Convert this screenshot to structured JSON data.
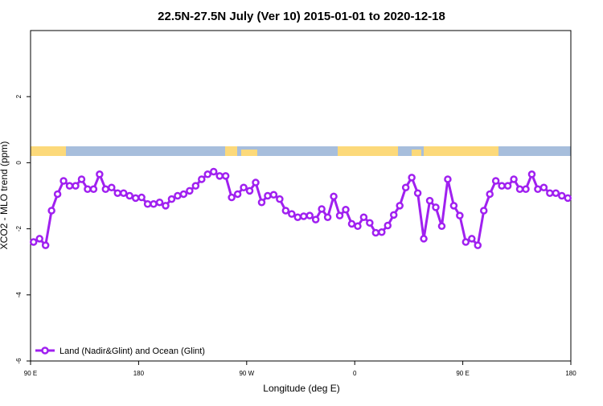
{
  "chart_data": {
    "type": "line",
    "title": "22.5N-27.5N July (Ver 10)   2015-01-01 to 2020-12-18",
    "x_label": "Longitude (deg E)",
    "y_label": "XCO2 - MLO trend (ppm)",
    "xlim": [
      90,
      540
    ],
    "ylim": [
      -6,
      4
    ],
    "xticks": [
      {
        "value": 90,
        "label": "90 E"
      },
      180,
      {
        "value": 270,
        "label": "90 W"
      },
      {
        "value": 360,
        "label": "0"
      },
      {
        "value": 450,
        "label": "90 E"
      },
      {
        "value": 540,
        "label": "180"
      }
    ],
    "yticks": [
      -6,
      -4,
      -2,
      0,
      2
    ],
    "legend": "bottom-left",
    "x": [
      92.5,
      97.5,
      102.5,
      107.5,
      112.5,
      117.5,
      122.5,
      127.5,
      132.5,
      137.5,
      142.5,
      147.5,
      152.5,
      157.5,
      162.5,
      167.5,
      172.5,
      177.5,
      182.5,
      187.5,
      192.5,
      197.5,
      202.5,
      207.5,
      212.5,
      217.5,
      222.5,
      227.5,
      232.5,
      237.5,
      242.5,
      247.5,
      252.5,
      257.5,
      262.5,
      267.5,
      272.5,
      277.5,
      282.5,
      287.5,
      292.5,
      297.5,
      302.5,
      307.5,
      312.5,
      317.5,
      322.5,
      327.5,
      332.5,
      337.5,
      342.5,
      347.5,
      352.5,
      357.5,
      362.5,
      367.5,
      372.5,
      377.5,
      382.5,
      387.5,
      392.5,
      397.5,
      402.5,
      407.5,
      412.5,
      417.5,
      422.5,
      427.5,
      432.5,
      437.5,
      442.5,
      447.5,
      452.5,
      457.5,
      462.5,
      467.5,
      472.5,
      477.5,
      482.5,
      487.5,
      492.5,
      497.5,
      502.5,
      507.5,
      512.5,
      517.5,
      522.5,
      527.5,
      532.5,
      537.5
    ],
    "series": [
      {
        "name": "Land (Nadir&Glint) and Ocean (Glint)",
        "color": "#a020f0",
        "values": [
          -2.4,
          -2.3,
          -2.5,
          -1.45,
          -0.95,
          -0.55,
          -0.7,
          -0.7,
          -0.5,
          -0.8,
          -0.8,
          -0.35,
          -0.8,
          -0.75,
          -0.92,
          -0.92,
          -1.0,
          -1.07,
          -1.05,
          -1.25,
          -1.25,
          -1.2,
          -1.3,
          -1.1,
          -1.0,
          -0.95,
          -0.85,
          -0.7,
          -0.5,
          -0.35,
          -0.27,
          -0.4,
          -0.4,
          -1.05,
          -0.95,
          -0.75,
          -0.85,
          -0.6,
          -1.2,
          -1.0,
          -0.97,
          -1.1,
          -1.45,
          -1.55,
          -1.65,
          -1.62,
          -1.6,
          -1.72,
          -1.4,
          -1.65,
          -1.02,
          -1.6,
          -1.42,
          -1.85,
          -1.92,
          -1.65,
          -1.82,
          -2.12,
          -2.1,
          -1.9,
          -1.58,
          -1.3,
          -0.75,
          -0.45,
          -0.92,
          -2.3,
          -1.15,
          -1.35,
          -1.92,
          -0.5,
          -1.3,
          -1.6,
          -2.4,
          -2.3,
          -2.5,
          -1.45,
          -0.95,
          -0.55,
          -0.7,
          -0.7,
          -0.5,
          -0.8,
          -0.8,
          -0.35,
          -0.8,
          -0.75,
          -0.92,
          -0.92,
          -1.0,
          -1.07
        ]
      }
    ]
  }
}
